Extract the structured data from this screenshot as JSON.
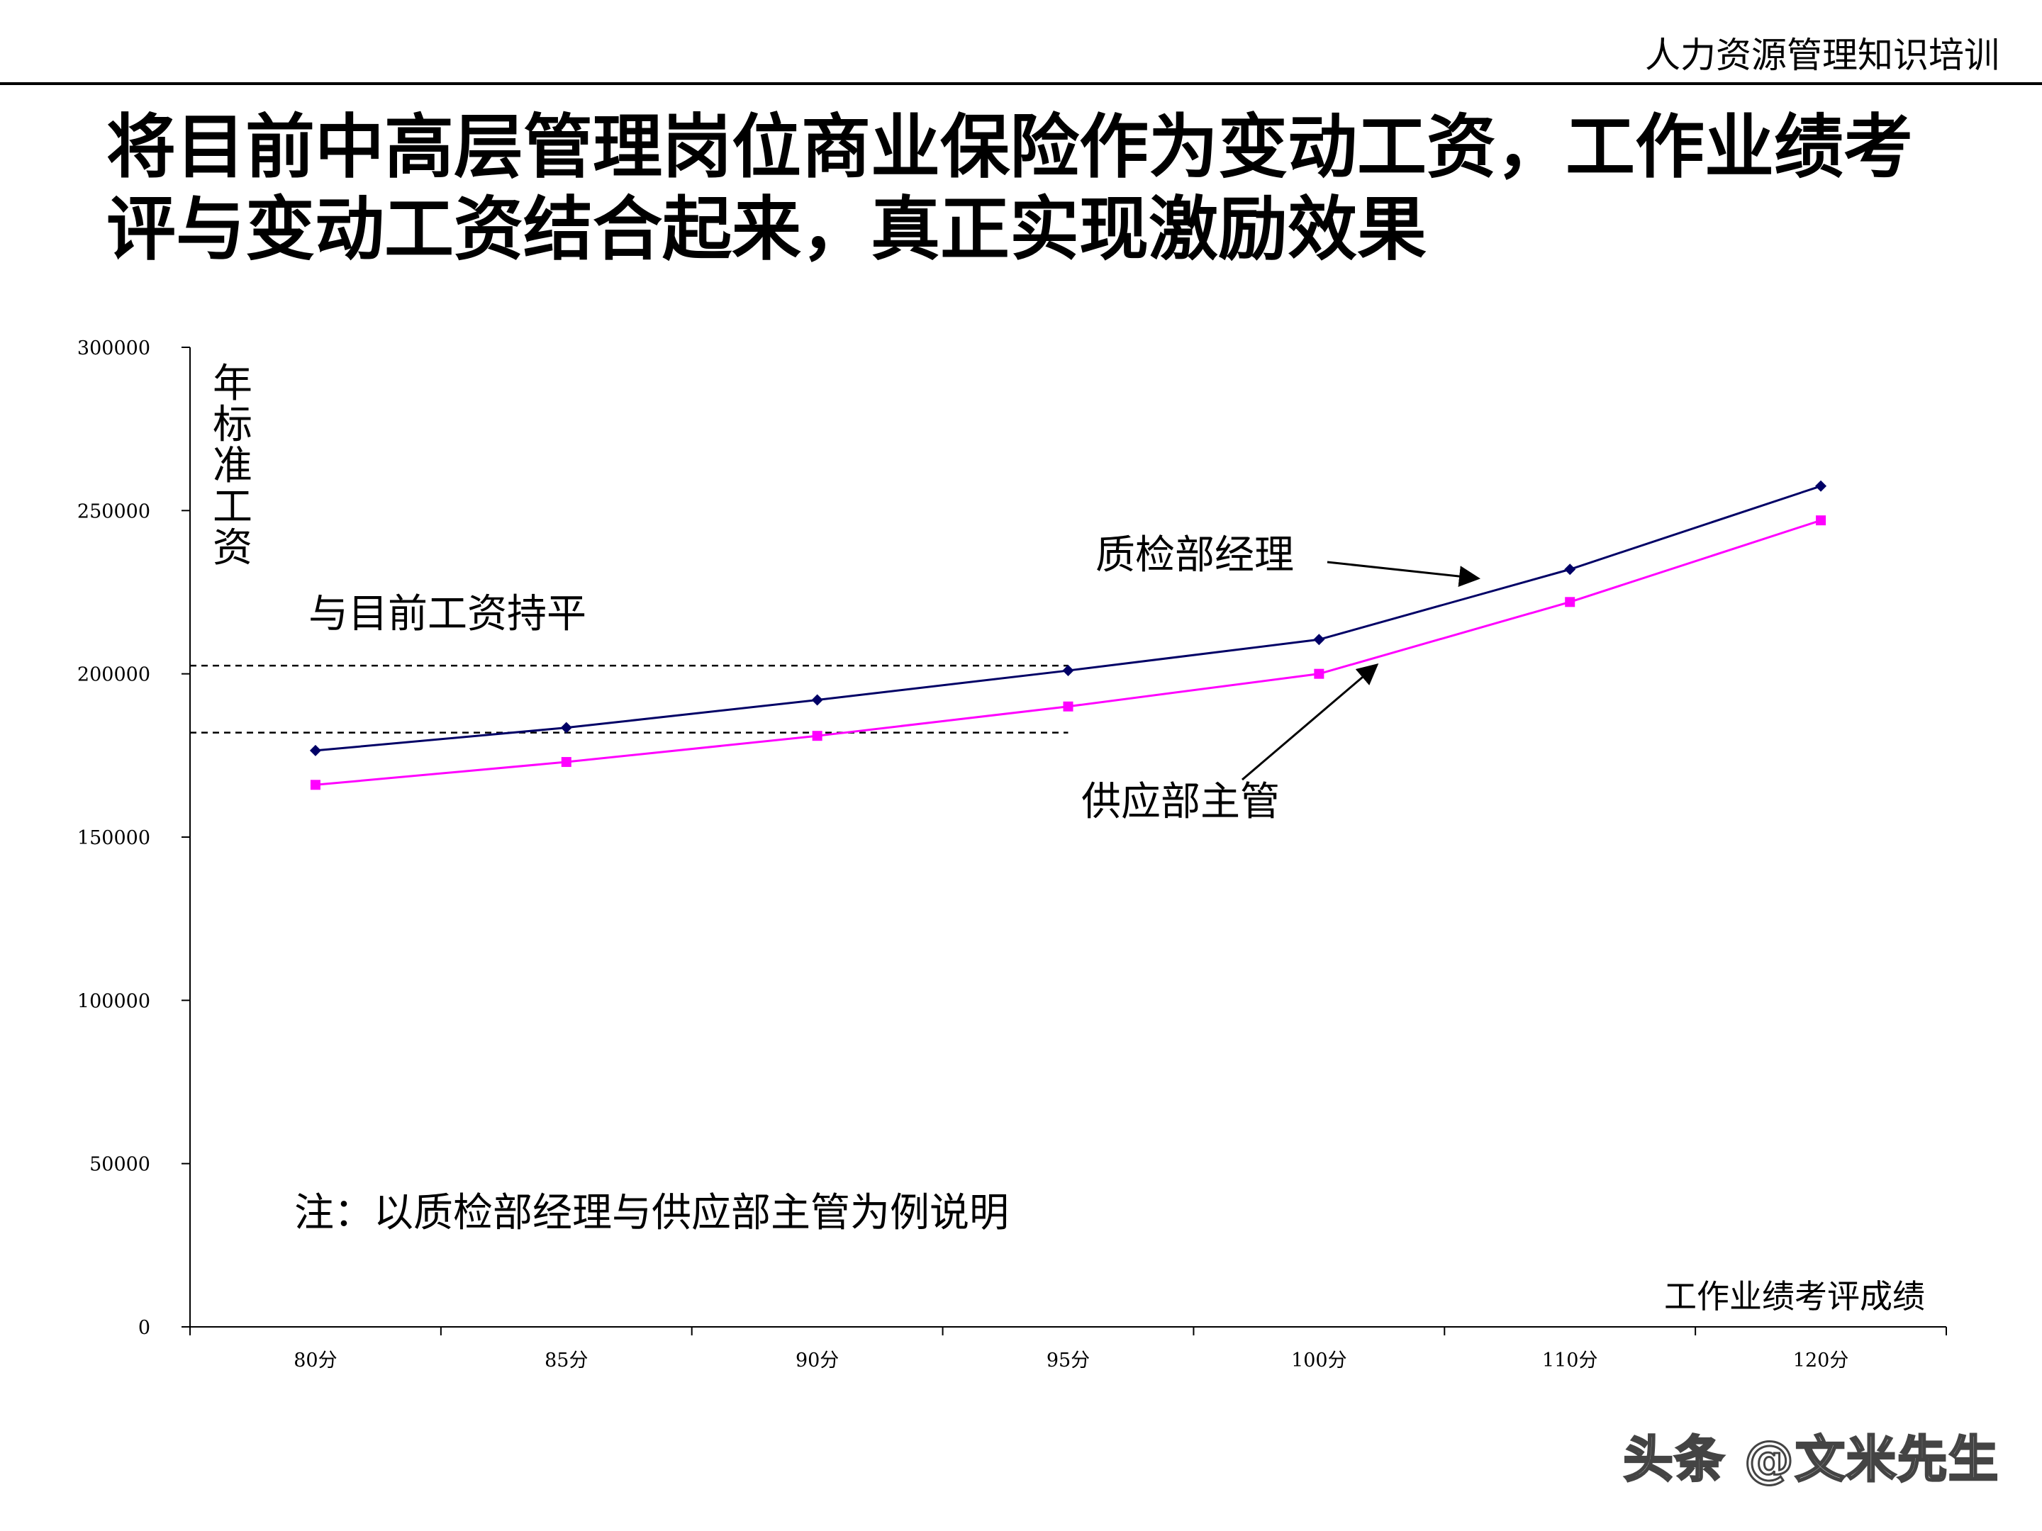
{
  "header": {
    "title": "人力资源管理知识培训"
  },
  "main_title": {
    "line1": "将目前中高层管理岗位商业保险作为变动工资，工作业绩考",
    "line2": "评与变动工资结合起来，真正实现激励效果"
  },
  "chart_data": {
    "type": "line",
    "categories": [
      "80分",
      "85分",
      "90分",
      "95分",
      "100分",
      "110分",
      "120分"
    ],
    "series": [
      {
        "name": "质检部经理",
        "values": [
          176500,
          183500,
          192000,
          201000,
          210500,
          232000,
          257500
        ],
        "color": "#000066",
        "marker": "diamond"
      },
      {
        "name": "供应部主管",
        "values": [
          166000,
          173000,
          181000,
          190000,
          200000,
          222000,
          247000
        ],
        "color": "#ff00ff",
        "marker": "square"
      }
    ],
    "ylim": [
      0,
      300000
    ],
    "yticks": [
      0,
      50000,
      100000,
      150000,
      200000,
      250000,
      300000
    ],
    "ylabel": "年标准工资",
    "xlabel": "工作业绩考评成绩",
    "grid": false,
    "reference_lines": [
      {
        "value": 202500,
        "style": "dashed"
      },
      {
        "value": 182000,
        "style": "dashed"
      }
    ],
    "annotations": {
      "flat_label": "与目前工资持平",
      "qc_label": "质检部经理",
      "supply_label": "供应部主管",
      "note": "注：以质检部经理与供应部主管为例说明"
    }
  },
  "watermark": "头条 @文米先生"
}
